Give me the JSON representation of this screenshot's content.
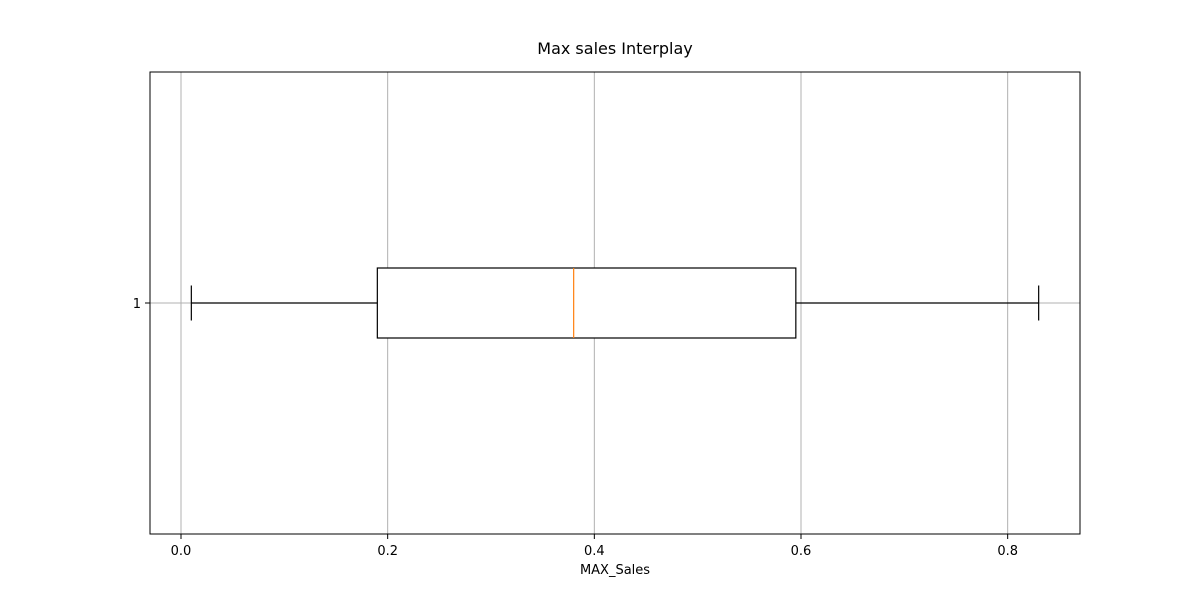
{
  "chart_data": {
    "type": "boxplot",
    "orientation": "horizontal",
    "title": "Max sales Interplay",
    "xlabel": "MAX_Sales",
    "ylabel": "",
    "xlim": [
      -0.03,
      0.87
    ],
    "x_ticks": [
      0.0,
      0.2,
      0.4,
      0.6,
      0.8
    ],
    "x_tick_labels": [
      "0.0",
      "0.2",
      "0.4",
      "0.6",
      "0.8"
    ],
    "y_tick_labels": [
      "1"
    ],
    "grid": true,
    "colors": {
      "box": "#000000",
      "median": "#ff7f0e",
      "grid": "#b0b0b0"
    },
    "boxes": [
      {
        "position": 1,
        "whisker_low": 0.01,
        "q1": 0.19,
        "median": 0.38,
        "q3": 0.595,
        "whisker_high": 0.83
      }
    ]
  }
}
